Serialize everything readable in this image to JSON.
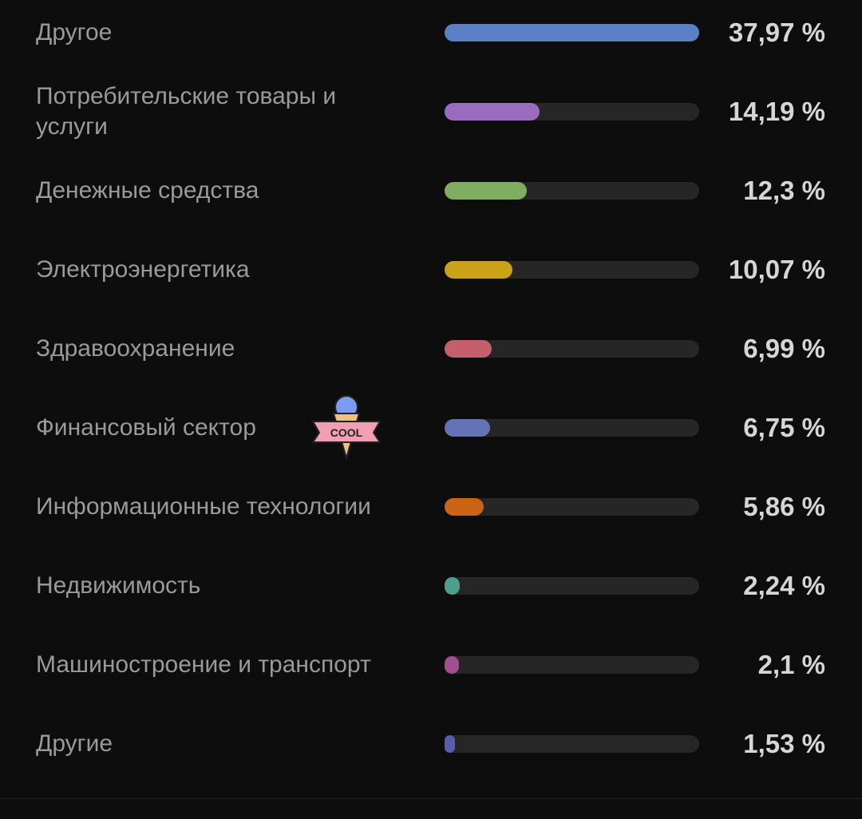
{
  "chart_data": {
    "type": "bar",
    "orientation": "horizontal",
    "categories": [
      "Другое",
      "Потребительские товары и услуги",
      "Денежные средства",
      "Электроэнергетика",
      "Здравоохранение",
      "Финансовый сектор",
      "Информационные технологии",
      "Недвижимость",
      "Машиностроение и транспорт",
      "Другие"
    ],
    "values": [
      37.97,
      14.19,
      12.3,
      10.07,
      6.99,
      6.75,
      5.86,
      2.24,
      2.1,
      1.53
    ],
    "value_labels": [
      "37,97 %",
      "14,19 %",
      "12,3 %",
      "10,07 %",
      "6,99 %",
      "6,75 %",
      "5,86 %",
      "2,24 %",
      "2,1 %",
      "1,53 %"
    ],
    "colors": [
      "#5b7fc4",
      "#9a6cc0",
      "#7fad62",
      "#c9a21a",
      "#c45f6c",
      "#6473b6",
      "#c86414",
      "#4e9e8c",
      "#a0508e",
      "#5c5cae"
    ]
  },
  "sticker": {
    "text": "COOL"
  }
}
